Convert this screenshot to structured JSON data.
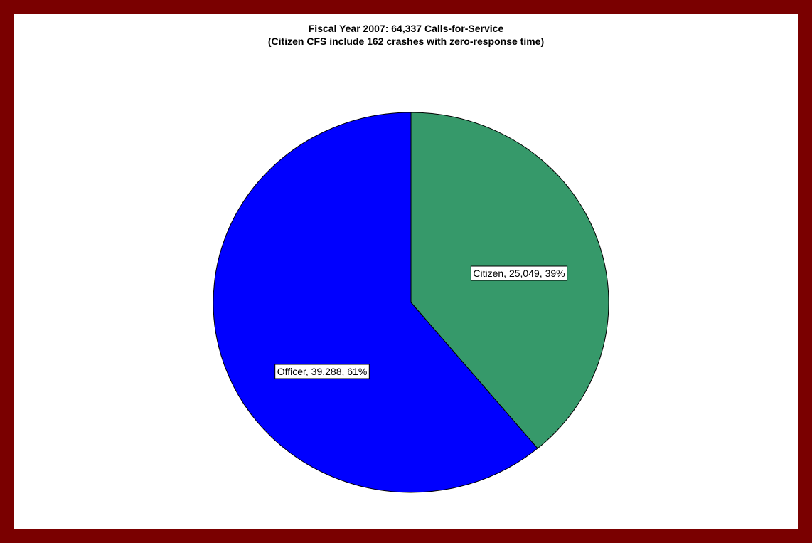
{
  "chart_data": {
    "type": "pie",
    "title": "Fiscal Year 2007: 64,337 Calls-for-Service",
    "subtitle": "(Citizen CFS include 162 crashes with zero-response time)",
    "slices": [
      {
        "label": "Citizen",
        "value": 25049,
        "percent": 39,
        "display": "Citizen, 25,049, 39%",
        "color": "#36996a"
      },
      {
        "label": "Officer",
        "value": 39288,
        "percent": 61,
        "display": "Officer, 39,288, 61%",
        "color": "#0000ff"
      }
    ],
    "start_angle": "12 o'clock, clockwise",
    "legend": "none"
  },
  "colors": {
    "border": "#7a0000",
    "background": "#ffffff",
    "outline": "#000000"
  }
}
